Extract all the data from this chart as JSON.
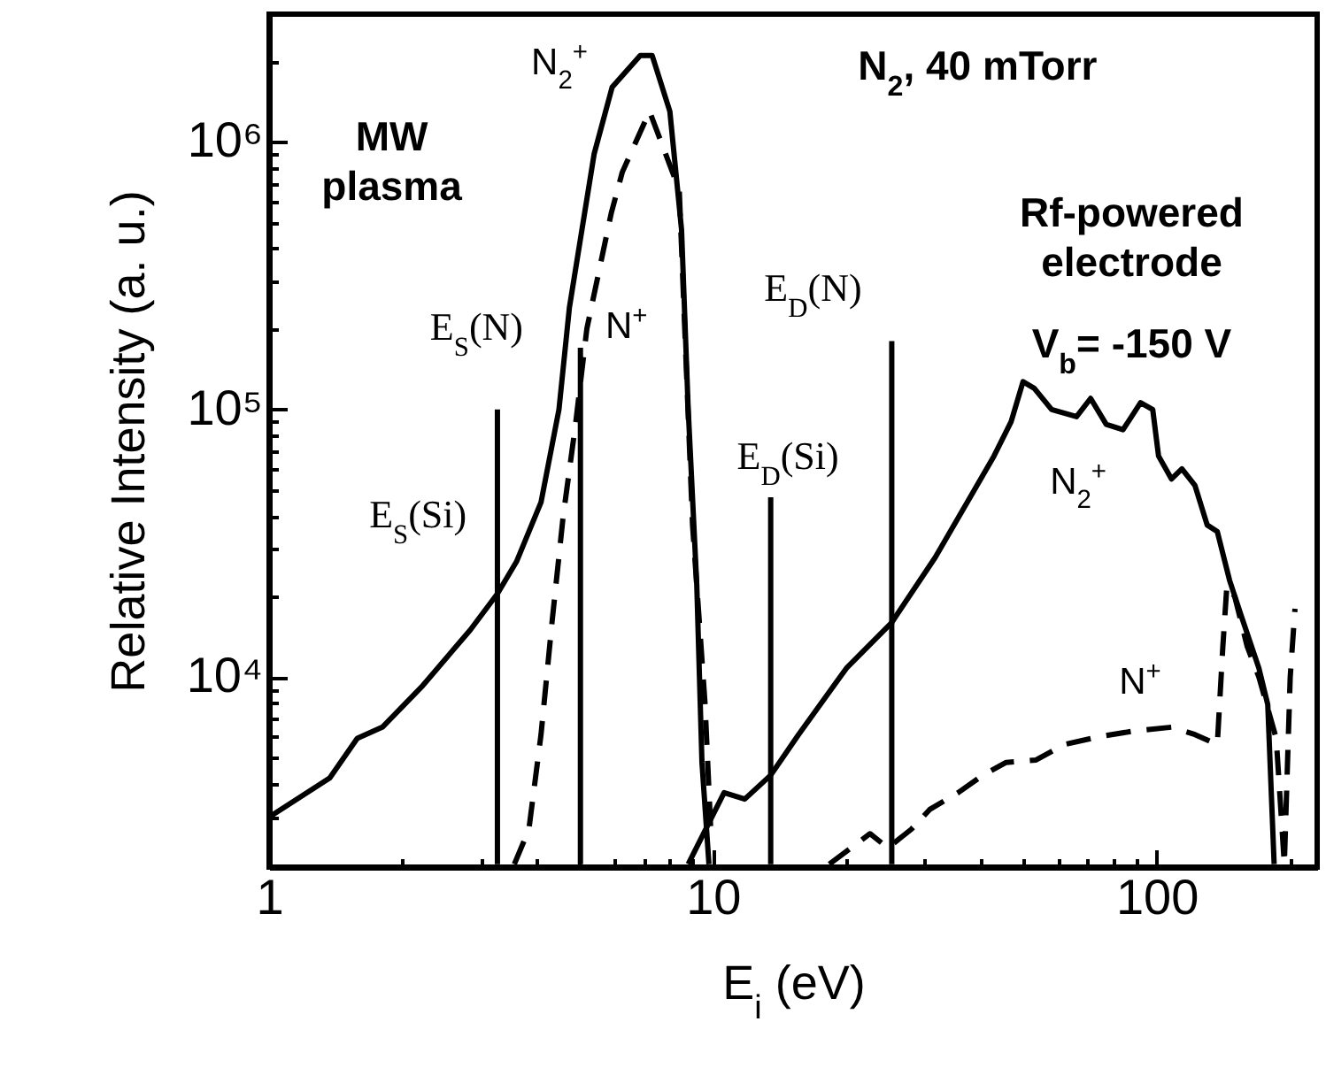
{
  "chart_data": {
    "type": "line",
    "xlabel": "E$_{i}$ (eV)",
    "ylabel": "Relative Intensity (a. u.)",
    "log": "xy",
    "xlim": [
      1,
      230
    ],
    "ylim": [
      1950,
      3000000
    ],
    "xticks": [
      1,
      {
        "value": 2,
        "label": null
      },
      {
        "value": 3,
        "label": null
      },
      {
        "value": 4,
        "label": null
      },
      {
        "value": 5,
        "label": null
      },
      {
        "value": 6,
        "label": null
      },
      {
        "value": 7,
        "label": null
      },
      {
        "value": 8,
        "label": null
      },
      {
        "value": 9,
        "label": null
      },
      10,
      {
        "value": 20,
        "label": null
      },
      {
        "value": 30,
        "label": null
      },
      {
        "value": 40,
        "label": null
      },
      {
        "value": 50,
        "label": null
      },
      {
        "value": 60,
        "label": null
      },
      {
        "value": 70,
        "label": null
      },
      {
        "value": 80,
        "label": null
      },
      {
        "value": 90,
        "label": null
      },
      100,
      {
        "value": 200,
        "label": null
      }
    ],
    "yticks": [
      {
        "value": 3000,
        "label": null
      },
      {
        "value": 4000,
        "label": null
      },
      {
        "value": 5000,
        "label": null
      },
      {
        "value": 6000,
        "label": null
      },
      {
        "value": 7000,
        "label": null
      },
      {
        "value": 8000,
        "label": null
      },
      {
        "value": 9000,
        "label": null
      },
      {
        "value": 10000,
        "label": "10⁴"
      },
      {
        "value": 20000,
        "label": null
      },
      {
        "value": 30000,
        "label": null
      },
      {
        "value": 40000,
        "label": null
      },
      {
        "value": 50000,
        "label": null
      },
      {
        "value": 60000,
        "label": null
      },
      {
        "value": 70000,
        "label": null
      },
      {
        "value": 80000,
        "label": null
      },
      {
        "value": 90000,
        "label": null
      },
      {
        "value": 100000,
        "label": "10⁵"
      },
      {
        "value": 200000,
        "label": null
      },
      {
        "value": 300000,
        "label": null
      },
      {
        "value": 400000,
        "label": null
      },
      {
        "value": 500000,
        "label": null
      },
      {
        "value": 600000,
        "label": null
      },
      {
        "value": 700000,
        "label": null
      },
      {
        "value": 800000,
        "label": null
      },
      {
        "value": 900000,
        "label": null
      },
      {
        "value": 1000000,
        "label": "10⁶"
      },
      {
        "value": 2000000,
        "label": null
      }
    ],
    "series": [
      {
        "color": "#000000",
        "line_style": "solid",
        "x": [
          1.0,
          1.37,
          1.58,
          1.8,
          2.22,
          2.84,
          3.27,
          3.61,
          4.1,
          4.5,
          4.75,
          5.07,
          5.4,
          5.93,
          6.86,
          7.3,
          8.0,
          8.5,
          8.8,
          9.2,
          9.45,
          9.8
        ],
        "values": [
          3000,
          4200,
          5900,
          6500,
          9300,
          15000,
          20500,
          27000,
          45000,
          100000,
          240000,
          470000,
          900000,
          1600000,
          2100000,
          2100000,
          1300000,
          470000,
          100000,
          22000,
          4800,
          2000
        ]
      },
      {
        "color": "#000000",
        "line_style": "dashed",
        "x": [
          3.57,
          3.85,
          4.1,
          4.34,
          4.6,
          4.9,
          5.2,
          5.9,
          6.25,
          7.2,
          8.4,
          9.0,
          9.6,
          9.9
        ],
        "values": [
          2000,
          2700,
          6100,
          16000,
          40000,
          87000,
          200000,
          540000,
          770000,
          1300000,
          660000,
          37000,
          8000,
          2600
        ]
      },
      {
        "color": "#000000",
        "line_style": "solid",
        "x": [
          8.8,
          10.6,
          11.8,
          13.5,
          15.6,
          20,
          25.3,
          31.7,
          38,
          43,
          47,
          50,
          53,
          58,
          66,
          71,
          77,
          84,
          92,
          98,
          101,
          108,
          114,
          122,
          130,
          137,
          146,
          155,
          170,
          178,
          184
        ],
        "values": [
          2000,
          3700,
          3500,
          4300,
          6100,
          10800,
          16000,
          28000,
          47000,
          67000,
          90000,
          127000,
          120000,
          100000,
          94000,
          110000,
          88000,
          84000,
          106000,
          100000,
          67000,
          55000,
          60000,
          52000,
          37000,
          35000,
          23000,
          17000,
          10800,
          7900,
          2000
        ]
      },
      {
        "color": "#000000",
        "line_style": "dashed",
        "x": [
          18.3,
          22.6,
          24.8,
          28,
          30.8,
          35.7,
          40.6,
          45.8,
          53.5,
          62,
          74.5,
          89.5,
          108,
          122,
          137,
          141,
          144,
          150,
          160,
          170,
          186,
          194,
          200,
          205
        ],
        "values": [
          2000,
          2600,
          2300,
          2700,
          3200,
          3700,
          4300,
          4800,
          4900,
          5600,
          6000,
          6300,
          6500,
          6100,
          5600,
          13000,
          22000,
          20000,
          13000,
          10000,
          5900,
          2000,
          10000,
          18000
        ]
      },
      {
        "color": "#000000",
        "line_style": "solid",
        "x": [
          3.27,
          3.27
        ],
        "values": [
          2000,
          100000
        ]
      },
      {
        "color": "#000000",
        "line_style": "solid",
        "x": [
          5.03,
          5.03
        ],
        "values": [
          2000,
          170000
        ]
      },
      {
        "color": "#000000",
        "line_style": "solid",
        "x": [
          13.5,
          13.5
        ],
        "values": [
          2000,
          47000
        ]
      },
      {
        "color": "#000000",
        "line_style": "solid",
        "x": [
          25.3,
          25.3
        ],
        "values": [
          2000,
          180000
        ]
      }
    ],
    "annotations": [
      "MW\nplasma",
      "N$_{2}$$^{+}$",
      "N$^{+}$",
      "E$_{S}$(N)",
      "E$_{S}$(Si)",
      "E$_{D}$(Si)",
      "E$_{D}$(N)",
      "N$_{2}$, 40 mTorr",
      "Rf-powered\nelectrode",
      "V$_{b}$= -150 V",
      "N$_{2}$$^{+}$",
      "N$^{+}$"
    ]
  }
}
